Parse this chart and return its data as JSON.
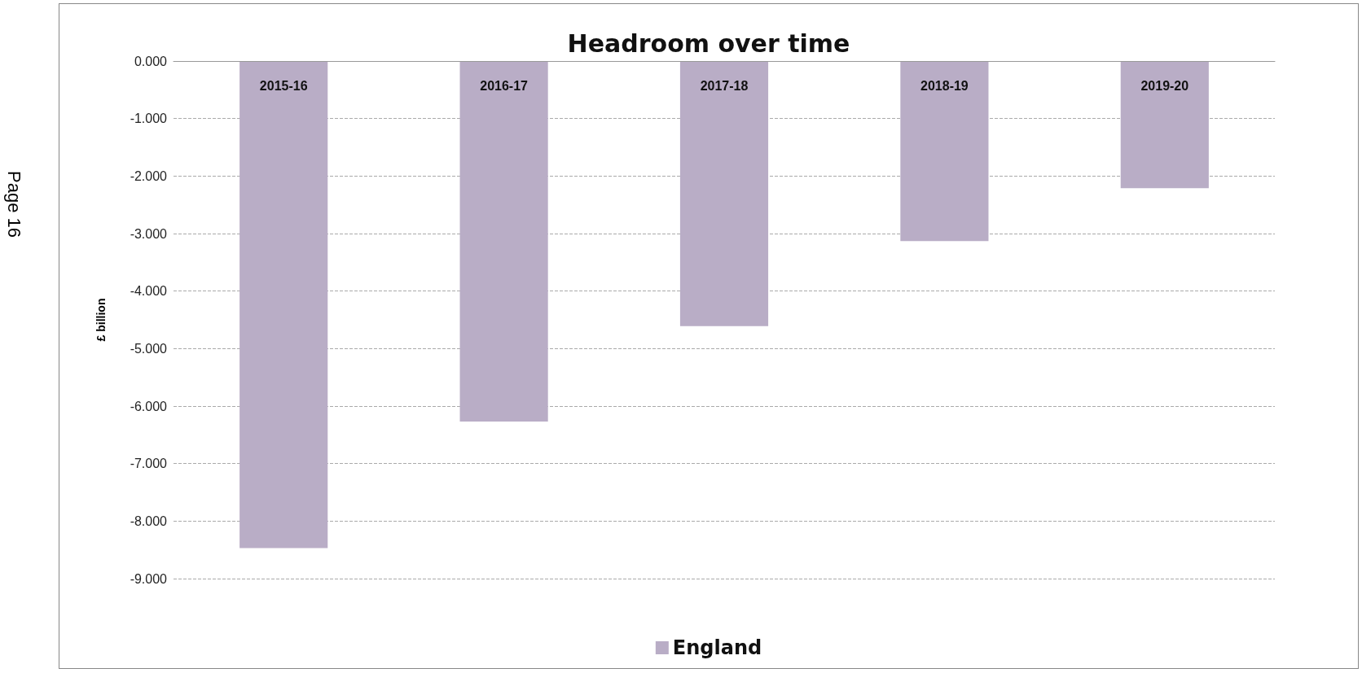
{
  "chart_data": {
    "type": "bar",
    "title": "Headroom over time",
    "ylabel": "£ billion",
    "categories": [
      "2015-16",
      "2016-17",
      "2017-18",
      "2018-19",
      "2019-20"
    ],
    "series": [
      {
        "name": "England",
        "color": "#b9adc6",
        "values": [
          -8.47,
          -6.27,
          -4.61,
          -3.13,
          -2.21
        ]
      }
    ],
    "ylim": [
      -9,
      0
    ],
    "yticks": [
      {
        "value": 0,
        "label": "0.000"
      },
      {
        "value": -1,
        "label": "-1.000"
      },
      {
        "value": -2,
        "label": "-2.000"
      },
      {
        "value": -3,
        "label": "-3.000"
      },
      {
        "value": -4,
        "label": "-4.000"
      },
      {
        "value": -5,
        "label": "-5.000"
      },
      {
        "value": -6,
        "label": "-6.000"
      },
      {
        "value": -7,
        "label": "-7.000"
      },
      {
        "value": -8,
        "label": "-8.000"
      },
      {
        "value": -9,
        "label": "-9.000"
      }
    ],
    "grid": "y",
    "legend": "bottom",
    "annotations": [
      "Page 16"
    ]
  }
}
